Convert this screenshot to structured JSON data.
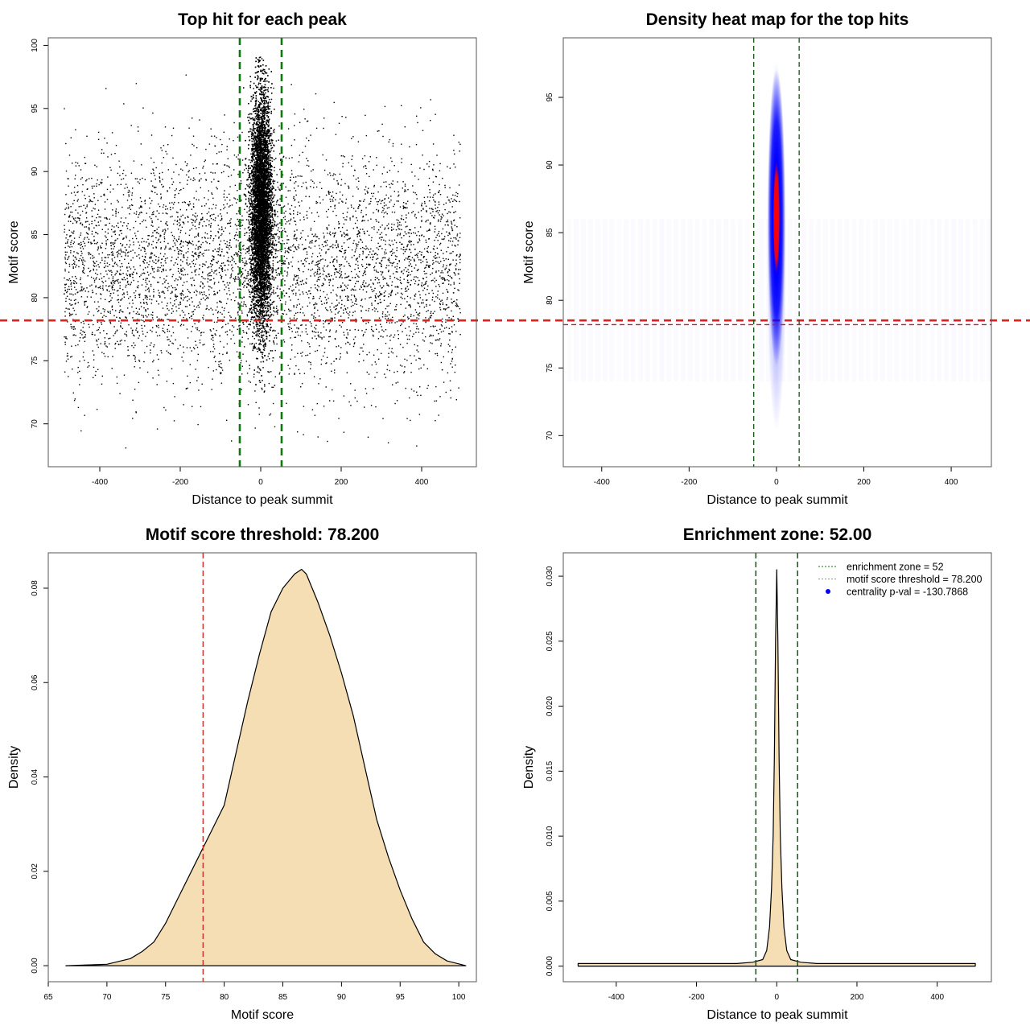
{
  "chart_data": [
    {
      "type": "scatter",
      "title": "Top hit for each peak",
      "xlabel": "Distance to peak summit",
      "ylabel": "Motif score",
      "xlim": [
        -528,
        536
      ],
      "ylim": [
        66.6,
        100.6
      ],
      "xticks": [
        -400,
        -200,
        0,
        200,
        400
      ],
      "yticks": [
        70,
        75,
        80,
        85,
        90,
        95,
        100
      ],
      "point_color": "#000000",
      "hlines": [
        {
          "y": 78.2,
          "color": "#dd2222",
          "style": "dashed"
        }
      ],
      "vlines": [
        {
          "x": -52,
          "color": "#117711",
          "style": "dashed"
        },
        {
          "x": 52,
          "color": "#117711",
          "style": "dashed"
        }
      ],
      "grid": false
    },
    {
      "type": "heatmap",
      "title": "Density heat map for the top hits",
      "xlabel": "Distance to peak summit",
      "ylabel": "Motif score",
      "xlim": [
        -488,
        492
      ],
      "ylim": [
        67.7,
        99.4
      ],
      "xticks": [
        -400,
        -200,
        0,
        200,
        400
      ],
      "yticks": [
        70,
        75,
        80,
        85,
        90,
        95
      ],
      "density_peak": {
        "x": 0,
        "y": 87
      },
      "colors": [
        "#ffffff",
        "#0000ff",
        "#ff0000"
      ],
      "hlines": [
        {
          "y": 78.2,
          "color": "#bb2222",
          "style": "dashed"
        }
      ],
      "vlines": [
        {
          "x": -52,
          "color": "#115511",
          "style": "dashed"
        },
        {
          "x": 52,
          "color": "#115511",
          "style": "dashed"
        }
      ],
      "grid": false
    },
    {
      "type": "area",
      "title": "Motif score threshold: 78.200",
      "xlabel": "Motif score",
      "ylabel": "Density",
      "xlim": [
        65,
        101.5
      ],
      "ylim": [
        -0.0034,
        0.0875
      ],
      "xticks": [
        65,
        70,
        75,
        80,
        85,
        90,
        95,
        100
      ],
      "yticks": [
        0.0,
        0.02,
        0.04,
        0.06,
        0.08
      ],
      "ytick_labels": [
        "0.00",
        "0.02",
        "0.04",
        "0.06",
        "0.08"
      ],
      "fill": "#f5deb3",
      "x": [
        66.5,
        70,
        72,
        73,
        74,
        75,
        76,
        77,
        78,
        79,
        80,
        81,
        82,
        83,
        84,
        85,
        86,
        86.6,
        87,
        88,
        89,
        90,
        91,
        92,
        93,
        94,
        95,
        96,
        97,
        98,
        99,
        100.6
      ],
      "y": [
        0,
        0.0003,
        0.0015,
        0.003,
        0.005,
        0.009,
        0.014,
        0.019,
        0.024,
        0.029,
        0.034,
        0.045,
        0.056,
        0.066,
        0.075,
        0.08,
        0.083,
        0.084,
        0.083,
        0.077,
        0.07,
        0.062,
        0.053,
        0.042,
        0.031,
        0.023,
        0.016,
        0.01,
        0.005,
        0.0025,
        0.001,
        0
      ],
      "vlines": [
        {
          "x": 78.2,
          "color": "#cc3333",
          "style": "dashed"
        }
      ],
      "grid": false
    },
    {
      "type": "area",
      "title": "Enrichment zone: 52.00",
      "xlabel": "Distance to peak summit",
      "ylabel": "Density",
      "xlim": [
        -532,
        535
      ],
      "ylim": [
        -0.0012,
        0.0318
      ],
      "xticks": [
        -400,
        -200,
        0,
        200,
        400
      ],
      "yticks": [
        0.0,
        0.005,
        0.01,
        0.015,
        0.02,
        0.025,
        0.03
      ],
      "ytick_labels": [
        "0.000",
        "0.005",
        "0.010",
        "0.015",
        "0.020",
        "0.025",
        "0.030"
      ],
      "fill": "#f5deb3",
      "x": [
        -495,
        -300,
        -100,
        -60,
        -35,
        -25,
        -18,
        -13,
        -9,
        -6,
        -3,
        0,
        3,
        6,
        9,
        13,
        18,
        25,
        35,
        60,
        100,
        300,
        495
      ],
      "y": [
        0.0002,
        0.0002,
        0.0002,
        0.0003,
        0.0005,
        0.0012,
        0.003,
        0.006,
        0.01,
        0.016,
        0.025,
        0.0305,
        0.025,
        0.016,
        0.01,
        0.006,
        0.003,
        0.0012,
        0.0005,
        0.0003,
        0.0002,
        0.0002,
        0.0002
      ],
      "vlines": [
        {
          "x": -52,
          "color": "#115511",
          "style": "dashed"
        },
        {
          "x": 52,
          "color": "#115511",
          "style": "dashed"
        }
      ],
      "legend": {
        "position": "top-right",
        "entries": [
          {
            "label": "enrichment zone = 52",
            "color": "#117711",
            "symbol": "dotted-line"
          },
          {
            "label": "motif score threshold = 78.200",
            "color": "#ee6666",
            "symbol": "dotted-line"
          },
          {
            "label": "centrality p-val = -130.7868",
            "color": "#0000ff",
            "symbol": "dot"
          }
        ]
      },
      "grid": false
    }
  ]
}
